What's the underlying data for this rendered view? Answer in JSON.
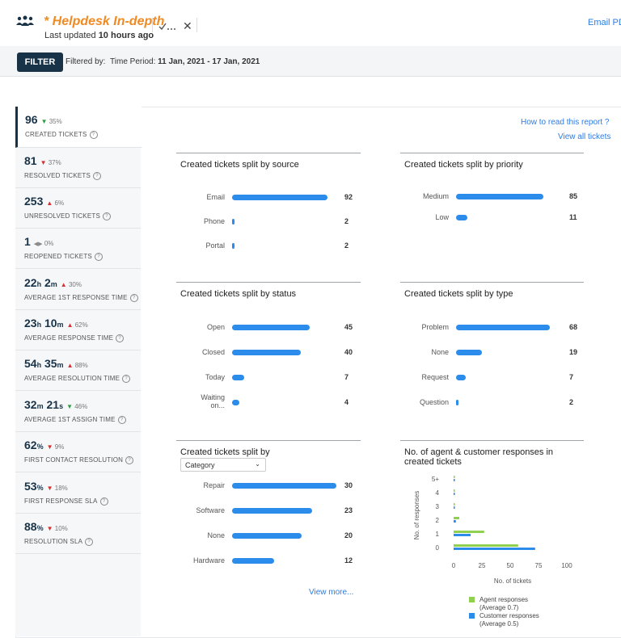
{
  "header": {
    "title": "* Helpdesk In-depth",
    "updated_prefix": "Last updated",
    "updated_value": "10 hours ago",
    "email_pdf": "Email PDF"
  },
  "filterbar": {
    "button": "FILTER",
    "filtered_by": "Filtered by:",
    "period_label": "Time Period:",
    "period_value": "11 Jan, 2021 - 17 Jan, 2021"
  },
  "links": {
    "how_to_read": "How to read this report ?",
    "view_all": "View all tickets",
    "view_more": "View more..."
  },
  "metrics": [
    {
      "value": "96",
      "change": "35%",
      "label": "CREATED TICKETS"
    },
    {
      "value": "81",
      "change": "37%",
      "label": "RESOLVED TICKETS"
    },
    {
      "value": "253",
      "change": "6%",
      "label": "UNRESOLVED TICKETS"
    },
    {
      "value": "1",
      "change": "0%",
      "label": "REOPENED TICKETS"
    },
    {
      "v1": "22",
      "u1": "h",
      "v2": "2",
      "u2": "m",
      "change": "30%",
      "label": "AVERAGE 1ST RESPONSE TIME"
    },
    {
      "v1": "23",
      "u1": "h",
      "v2": "10",
      "u2": "m",
      "change": "62%",
      "label": "AVERAGE RESPONSE TIME"
    },
    {
      "v1": "54",
      "u1": "h",
      "v2": "35",
      "u2": "m",
      "change": "88%",
      "label": "AVERAGE RESOLUTION TIME"
    },
    {
      "v1": "32",
      "u1": "m",
      "v2": "21",
      "u2": "s",
      "change": "46%",
      "label": "AVERAGE 1ST ASSIGN TIME"
    },
    {
      "v1": "62",
      "u1": "%",
      "change": "9%",
      "label": "FIRST CONTACT RESOLUTION"
    },
    {
      "v1": "53",
      "u1": "%",
      "change": "18%",
      "label": "FIRST RESPONSE SLA"
    },
    {
      "v1": "88",
      "u1": "%",
      "change": "10%",
      "label": "RESOLUTION SLA"
    }
  ],
  "select": {
    "category": "Category"
  },
  "colors": {
    "bar": "#2c8ceb",
    "agent": "#8fd14f",
    "customer": "#2c8ceb",
    "accent": "#f08a24",
    "brand": "#183247"
  },
  "chart_data": [
    {
      "type": "bar",
      "title": "Created tickets split by source",
      "categories": [
        "Email",
        "Phone",
        "Portal"
      ],
      "values": [
        92,
        2,
        2
      ]
    },
    {
      "type": "bar",
      "title": "Created tickets split by priority",
      "categories": [
        "Medium",
        "Low"
      ],
      "values": [
        85,
        11
      ]
    },
    {
      "type": "bar",
      "title": "Created tickets split by status",
      "categories": [
        "Open",
        "Closed",
        "Today",
        "Waiting on..."
      ],
      "values": [
        45,
        40,
        7,
        4
      ]
    },
    {
      "type": "bar",
      "title": "Created tickets split by type",
      "categories": [
        "Problem",
        "None",
        "Request",
        "Question"
      ],
      "values": [
        68,
        19,
        7,
        2
      ]
    },
    {
      "type": "bar",
      "title": "Created tickets split by",
      "categories": [
        "Repair",
        "Software",
        "None",
        "Hardware"
      ],
      "values": [
        30,
        23,
        20,
        12
      ]
    },
    {
      "type": "bar",
      "title": "No. of agent & customer responses in created tickets",
      "xlabel": "No. of tickets",
      "ylabel": "No. of responses",
      "categories": [
        "5+",
        "4",
        "3",
        "2",
        "1",
        "0"
      ],
      "xticks": [
        0,
        25,
        50,
        75,
        100
      ],
      "xlim": [
        0,
        100
      ],
      "series": [
        {
          "name": "Agent responses (Average 0.7)",
          "legend_line1": "Agent responses",
          "legend_line2": "(Average 0.7)",
          "values": [
            1,
            1,
            1,
            5,
            27,
            57
          ]
        },
        {
          "name": "Customer responses (Average 0.5)",
          "legend_line1": "Customer responses",
          "legend_line2": "(Average 0.5)",
          "values": [
            1,
            1,
            1,
            2,
            15,
            72
          ]
        }
      ]
    }
  ]
}
